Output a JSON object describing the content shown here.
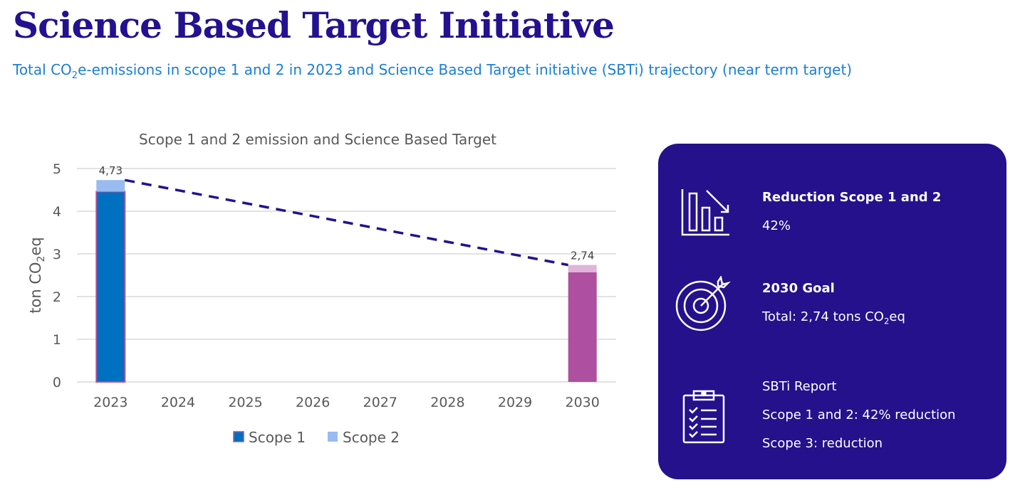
{
  "header": {
    "title": "Science Based Target Initiative",
    "subtitle_pre": "Total CO",
    "subtitle_sub": "2",
    "subtitle_post": "e-emissions in scope 1 and 2 in 2023 and Science Based Target initiative (SBTi) trajectory (near term target)"
  },
  "chart_data": {
    "type": "bar",
    "title": "Scope 1 and 2 emission and Science Based Target",
    "ylabel_pre": "ton CO",
    "ylabel_sub": "2",
    "ylabel_post": "eq",
    "categories": [
      "2023",
      "2024",
      "2025",
      "2026",
      "2027",
      "2028",
      "2029",
      "2030"
    ],
    "ylim": [
      0,
      5
    ],
    "yticks": [
      "0",
      "1",
      "2",
      "3",
      "4",
      "5"
    ],
    "grid": true,
    "legend_position": "bottom",
    "stacked": true,
    "series": [
      {
        "name": "Scope 1",
        "values": [
          4.46,
          null,
          null,
          null,
          null,
          null,
          null,
          2.57
        ],
        "colors": [
          "#0070c0",
          "#ae4f9f"
        ]
      },
      {
        "name": "Scope 2",
        "values": [
          0.27,
          null,
          null,
          null,
          null,
          null,
          null,
          0.17
        ],
        "colors": [
          "#99bbf2",
          "#dfb4d9"
        ]
      }
    ],
    "data_labels": [
      "4,73",
      "",
      "",
      "",
      "",
      "",
      "",
      "2,74"
    ],
    "trajectory": {
      "from": [
        "2023",
        4.73
      ],
      "to": [
        "2030",
        2.74
      ],
      "color": "#231190",
      "style": "dashed"
    },
    "legend": [
      {
        "name": "Scope 1",
        "color": "#0070c0"
      },
      {
        "name": "Scope 2",
        "color": "#99bbf2"
      }
    ]
  },
  "panel": {
    "bg": "#24118b",
    "item1": {
      "icon": "bar-chart-decrease-icon",
      "title": "Reduction Scope 1 and 2",
      "value": "42%"
    },
    "item2": {
      "icon": "target-icon",
      "title": "2030 Goal",
      "value_pre": "Total: 2,74 tons CO",
      "value_sub": "2",
      "value_post": "eq"
    },
    "item3": {
      "icon": "clipboard-checklist-icon",
      "line1": "SBTi Report",
      "line2": "Scope 1 and 2: 42% reduction",
      "line3": "Scope 3: reduction"
    }
  }
}
